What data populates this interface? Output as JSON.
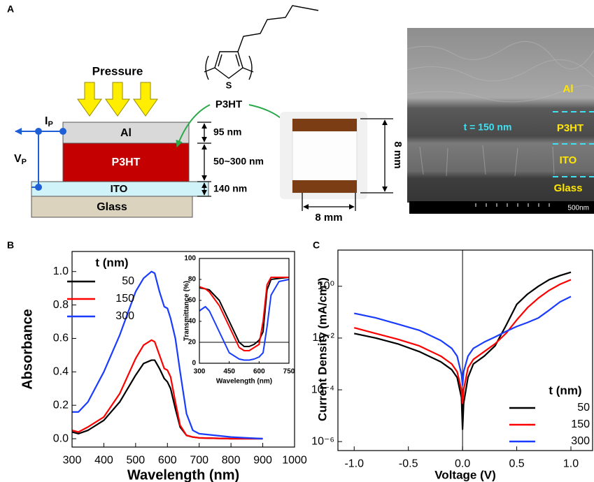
{
  "panel_a": {
    "label": "A",
    "pressure": "Pressure",
    "layers": [
      "Al",
      "P3HT",
      "ITO",
      "Glass"
    ],
    "current": {
      "main": "I",
      "sub": "P"
    },
    "voltage": {
      "main": "V",
      "sub": "P"
    },
    "thicknesses": [
      "95 nm",
      "50~300 nm",
      "140 nm"
    ],
    "molecule": {
      "atom": "S",
      "name": "P3HT"
    },
    "sample": {
      "height": "8 mm",
      "width": "8 mm"
    },
    "sem": {
      "layers": [
        "Al",
        "P3HT",
        "ITO",
        "Glass"
      ],
      "thickness": "t = 150 nm",
      "scale": "500nm"
    }
  },
  "chart_data": [
    {
      "type": "line",
      "label": "B",
      "x_label": "Wavelength (nm)",
      "y_label": "Absorbance",
      "x": [
        300,
        320,
        350,
        400,
        450,
        500,
        525,
        550,
        560,
        575,
        590,
        600,
        610,
        625,
        640,
        660,
        680,
        700,
        800,
        850,
        900
      ],
      "series": [
        {
          "name": "50",
          "color": "#000000",
          "values": [
            0.04,
            0.03,
            0.05,
            0.11,
            0.22,
            0.38,
            0.45,
            0.47,
            0.47,
            0.42,
            0.36,
            0.34,
            0.3,
            0.18,
            0.07,
            0.02,
            0.01,
            0.005,
            0,
            0,
            0
          ]
        },
        {
          "name": "150",
          "color": "#ff0000",
          "values": [
            0.05,
            0.04,
            0.07,
            0.13,
            0.27,
            0.48,
            0.56,
            0.59,
            0.58,
            0.5,
            0.42,
            0.41,
            0.37,
            0.22,
            0.08,
            0.02,
            0.01,
            0.005,
            0,
            0,
            0
          ]
        },
        {
          "name": "300",
          "color": "#1a3cff",
          "values": [
            0.16,
            0.16,
            0.22,
            0.4,
            0.62,
            0.88,
            0.96,
            1.0,
            0.99,
            0.88,
            0.79,
            0.78,
            0.72,
            0.6,
            0.4,
            0.15,
            0.05,
            0.03,
            0.01,
            0.005,
            0
          ]
        }
      ],
      "xlim": [
        300,
        1000
      ],
      "xticks": [
        300,
        400,
        500,
        600,
        700,
        800,
        900,
        1000
      ],
      "ylim": [
        -0.05,
        1.12
      ],
      "yticks": [
        {
          "value": 0,
          "label": "0.0"
        },
        0.2,
        0.4,
        0.6,
        0.8,
        {
          "value": 1,
          "label": "1.0"
        }
      ],
      "legend_title": "t (nm)",
      "legend": "upper left"
    },
    {
      "type": "line",
      "x_label": "Wavelength (nm)",
      "y_label": "Transmittance (%)",
      "x": [
        300,
        330,
        350,
        400,
        450,
        500,
        525,
        550,
        575,
        600,
        620,
        640,
        660,
        700,
        750
      ],
      "series": [
        {
          "color": "#000000",
          "values": [
            72,
            71,
            70,
            60,
            40,
            20,
            16,
            16,
            18,
            22,
            30,
            70,
            80,
            81,
            82
          ]
        },
        {
          "color": "#ff0000",
          "values": [
            73,
            71,
            68,
            55,
            35,
            15,
            12,
            12,
            15,
            18,
            40,
            75,
            82,
            82,
            82
          ]
        },
        {
          "color": "#1a3cff",
          "values": [
            50,
            54,
            50,
            30,
            10,
            4,
            3,
            3,
            4,
            6,
            10,
            35,
            65,
            78,
            80
          ]
        }
      ],
      "xlim": [
        300,
        750
      ],
      "xticks": [
        300,
        450,
        600,
        750
      ],
      "ylim": [
        0,
        100
      ],
      "yticks": [
        0,
        20,
        40,
        60,
        80,
        100
      ],
      "reference_line": 20
    },
    {
      "type": "line",
      "label": "C",
      "x_label": "Voltage (V)",
      "y_label": "Current Density (mA/cm²)",
      "log_y": true,
      "x": [
        -1,
        -0.8,
        -0.6,
        -0.4,
        -0.2,
        -0.1,
        -0.05,
        -0.01,
        0,
        0.01,
        0.05,
        0.1,
        0.2,
        0.3,
        0.4,
        0.5,
        0.6,
        0.7,
        0.8,
        0.9,
        1.0
      ],
      "series": [
        {
          "name": "50",
          "color": "#000000",
          "values": [
            0.015,
            0.01,
            0.006,
            0.003,
            0.0012,
            0.0006,
            0.0003,
            5e-05,
            3e-06,
            3e-05,
            0.0003,
            0.001,
            0.002,
            0.005,
            0.03,
            0.2,
            0.5,
            1,
            1.8,
            2.6,
            3.5
          ]
        },
        {
          "name": "150",
          "color": "#ff0000",
          "values": [
            0.025,
            0.015,
            0.009,
            0.005,
            0.002,
            0.001,
            0.0005,
            0.0001,
            3e-05,
            0.0001,
            0.0007,
            0.0015,
            0.003,
            0.006,
            0.015,
            0.05,
            0.15,
            0.35,
            0.7,
            1.2,
            1.8
          ]
        },
        {
          "name": "300",
          "color": "#1a3cff",
          "values": [
            0.09,
            0.06,
            0.035,
            0.02,
            0.008,
            0.004,
            0.002,
            0.0004,
            0.00015,
            0.0005,
            0.002,
            0.004,
            0.007,
            0.011,
            0.018,
            0.028,
            0.04,
            0.06,
            0.12,
            0.25,
            0.4
          ]
        }
      ],
      "xlim": [
        -1.15,
        1.2
      ],
      "xticks": [
        {
          "value": -1,
          "label": "-1.0"
        },
        -0.5,
        {
          "value": 0,
          "label": "0.0"
        },
        0.5,
        {
          "value": 1,
          "label": "1.0"
        }
      ],
      "ylim": [
        4.5e-07,
        25
      ],
      "yticks": [
        {
          "value": 1e-06,
          "label": "10⁻⁶"
        },
        {
          "value": 0.0001,
          "label": "10⁻⁴"
        },
        {
          "value": 0.01,
          "label": "10⁻²"
        },
        {
          "value": 1,
          "label": "10⁰"
        }
      ],
      "vline": 0,
      "legend_title": "t (nm)",
      "legend": "lower right"
    }
  ]
}
